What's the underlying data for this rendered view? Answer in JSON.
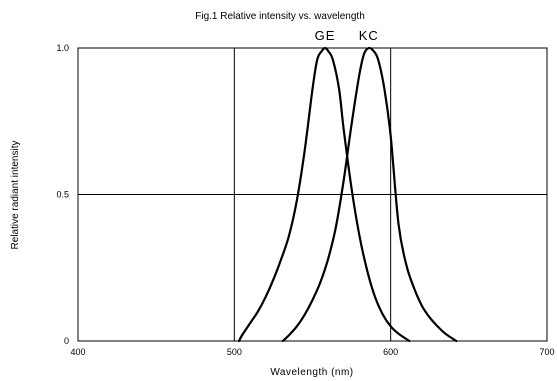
{
  "chart_data": {
    "type": "line",
    "title": "Fig.1 Relative intensity vs. wavelength",
    "xlabel": "Wavelength (nm)",
    "ylabel": "Relative radiant intensity",
    "xlim": [
      400,
      700
    ],
    "ylim": [
      0,
      1.0
    ],
    "x_ticks": [
      400,
      500,
      600,
      700
    ],
    "y_ticks": [
      {
        "value": 0,
        "label": "0"
      },
      {
        "value": 0.5,
        "label": "0.5"
      },
      {
        "value": 1.0,
        "label": "1.0"
      }
    ],
    "grid": true,
    "series": [
      {
        "name": "GE",
        "color": "#000000",
        "points": [
          [
            503,
            0.0
          ],
          [
            505,
            0.02
          ],
          [
            510,
            0.06
          ],
          [
            515,
            0.1
          ],
          [
            520,
            0.15
          ],
          [
            525,
            0.21
          ],
          [
            530,
            0.28
          ],
          [
            535,
            0.36
          ],
          [
            540,
            0.48
          ],
          [
            545,
            0.65
          ],
          [
            550,
            0.86
          ],
          [
            553,
            0.96
          ],
          [
            556,
            0.99
          ],
          [
            558,
            1.0
          ],
          [
            560,
            0.99
          ],
          [
            563,
            0.96
          ],
          [
            567,
            0.86
          ],
          [
            570,
            0.72
          ],
          [
            575,
            0.52
          ],
          [
            580,
            0.36
          ],
          [
            585,
            0.24
          ],
          [
            590,
            0.15
          ],
          [
            595,
            0.09
          ],
          [
            600,
            0.05
          ],
          [
            605,
            0.025
          ],
          [
            612,
            0.0
          ]
        ]
      },
      {
        "name": "KC",
        "color": "#000000",
        "points": [
          [
            531,
            0.0
          ],
          [
            535,
            0.02
          ],
          [
            540,
            0.05
          ],
          [
            545,
            0.09
          ],
          [
            550,
            0.14
          ],
          [
            555,
            0.2
          ],
          [
            560,
            0.28
          ],
          [
            565,
            0.39
          ],
          [
            570,
            0.55
          ],
          [
            575,
            0.74
          ],
          [
            580,
            0.91
          ],
          [
            583,
            0.98
          ],
          [
            586,
            1.0
          ],
          [
            589,
            0.99
          ],
          [
            592,
            0.96
          ],
          [
            596,
            0.86
          ],
          [
            600,
            0.7
          ],
          [
            605,
            0.4
          ],
          [
            610,
            0.26
          ],
          [
            615,
            0.18
          ],
          [
            620,
            0.12
          ],
          [
            625,
            0.08
          ],
          [
            630,
            0.05
          ],
          [
            635,
            0.025
          ],
          [
            642,
            0.0
          ]
        ]
      }
    ]
  }
}
